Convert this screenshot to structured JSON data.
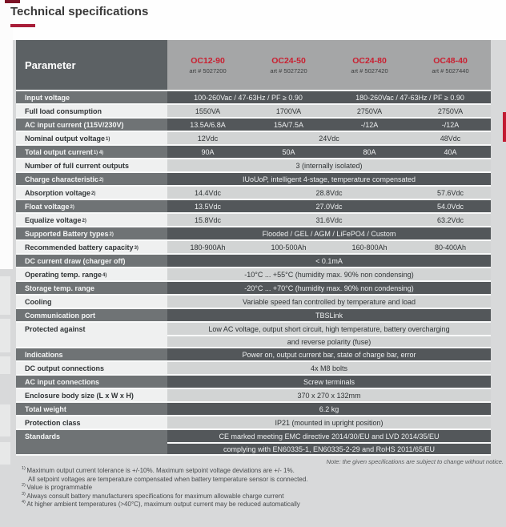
{
  "page": {
    "title": "Technical specifications",
    "note": "Note: the given specifications are subject to change without notice.",
    "footnotes": [
      {
        "marker": "1)",
        "lines": [
          "Maximum output current tolerance is +/-10%. Maximum setpoint voltage deviations are +/- 1%.",
          "All setpoint voltages are temperature compensated when battery temperature sensor is connected."
        ]
      },
      {
        "marker": "2)",
        "lines": [
          "Value is programmable"
        ]
      },
      {
        "marker": "3)",
        "lines": [
          "Always consult battery manufacturers specifications for maximum allowable charge current"
        ]
      },
      {
        "marker": "4)",
        "lines": [
          "At higher ambient temperatures (>40°C), maximum output current may be reduced automatically"
        ]
      }
    ]
  },
  "table": {
    "param_header": "Parameter",
    "products": [
      {
        "name": "OC12-90",
        "art": "art # 5027200"
      },
      {
        "name": "OC24-50",
        "art": "art # 5027220"
      },
      {
        "name": "OC24-80",
        "art": "art # 5027420"
      },
      {
        "name": "OC48-40",
        "art": "art # 5027440"
      }
    ],
    "rows": [
      {
        "label": "Input voltage",
        "shade": "dark",
        "layout": "span2",
        "values": [
          "100-260Vac / 47-63Hz / PF ≥ 0.90",
          "180-260Vac / 47-63Hz / PF ≥ 0.90"
        ]
      },
      {
        "label": "Full load consumption",
        "shade": "light",
        "layout": "cols4",
        "values": [
          "1550VA",
          "1700VA",
          "2750VA",
          "2750VA"
        ]
      },
      {
        "label": "AC input current (115V/230V)",
        "shade": "dark",
        "layout": "cols4",
        "values": [
          "13.5A/6.8A",
          "15A/7.5A",
          "-/12A",
          "-/12A"
        ]
      },
      {
        "label": "Nominal output voltage",
        "sup": "1)",
        "shade": "light",
        "layout": "mid3",
        "values": [
          "12Vdc",
          "24Vdc",
          "48Vdc"
        ]
      },
      {
        "label": "Total output current",
        "sup": "1) 4)",
        "shade": "dark",
        "layout": "cols4",
        "values": [
          "90A",
          "50A",
          "80A",
          "40A"
        ]
      },
      {
        "label": "Number of full current outputs",
        "shade": "light",
        "layout": "full",
        "values": [
          "3 (internally isolated)"
        ]
      },
      {
        "label": "Charge characteristic",
        "sup": "2)",
        "shade": "dark",
        "layout": "full",
        "values": [
          "IUoUoP, intelligent 4-stage, temperature compensated"
        ]
      },
      {
        "label": "Absorption voltage",
        "sup": "2)",
        "shade": "light",
        "layout": "mid3",
        "values": [
          "14.4Vdc",
          "28.8Vdc",
          "57.6Vdc"
        ]
      },
      {
        "label": "Float voltage",
        "sup": "2)",
        "shade": "dark",
        "layout": "mid3",
        "values": [
          "13.5Vdc",
          "27.0Vdc",
          "54.0Vdc"
        ]
      },
      {
        "label": "Equalize voltage",
        "sup": "2)",
        "shade": "light",
        "layout": "mid3",
        "values": [
          "15.8Vdc",
          "31.6Vdc",
          "63.2Vdc"
        ]
      },
      {
        "label": "Supported Battery types",
        "sup": "2)",
        "shade": "dark",
        "layout": "full",
        "values": [
          "Flooded / GEL / AGM / LiFePO4 / Custom"
        ]
      },
      {
        "label": "Recommended battery capacity",
        "sup": "3)",
        "shade": "light",
        "layout": "cols4",
        "values": [
          "180-900Ah",
          "100-500Ah",
          "160-800Ah",
          "80-400Ah"
        ]
      },
      {
        "label": "DC current draw (charger off)",
        "shade": "dark",
        "layout": "full",
        "values": [
          "< 0.1mA"
        ]
      },
      {
        "label": "Operating temp. range",
        "sup": "4)",
        "shade": "light",
        "layout": "full",
        "values": [
          "-10°C ... +55°C (humidity max. 90% non condensing)"
        ]
      },
      {
        "label": "Storage temp. range",
        "shade": "dark",
        "layout": "full",
        "values": [
          "-20°C ... +70°C (humidity max. 90% non condensing)"
        ]
      },
      {
        "label": "Cooling",
        "shade": "light",
        "layout": "full",
        "values": [
          "Variable speed fan controlled by temperature and load"
        ]
      },
      {
        "label": "Communication port",
        "shade": "dark",
        "layout": "full",
        "values": [
          "TBSLink"
        ]
      },
      {
        "label": "Protected against",
        "shade": "light",
        "layout": "full2",
        "values": [
          "Low AC voltage, output short circuit, high temperature, battery overcharging",
          "and reverse polarity (fuse)"
        ]
      },
      {
        "label": "Indications",
        "shade": "dark",
        "layout": "full",
        "values": [
          "Power on, output current bar, state of charge bar, error"
        ]
      },
      {
        "label": "DC output connections",
        "shade": "light",
        "layout": "full",
        "values": [
          "4x M8 bolts"
        ]
      },
      {
        "label": "AC input connections",
        "shade": "dark",
        "layout": "full",
        "values": [
          "Screw terminals"
        ]
      },
      {
        "label": "Enclosure body size (L x W x H)",
        "shade": "light",
        "layout": "full",
        "values": [
          "370 x 270 x 132mm"
        ]
      },
      {
        "label": "Total weight",
        "shade": "dark",
        "layout": "full",
        "values": [
          "6.2 kg"
        ]
      },
      {
        "label": "Protection class",
        "shade": "light",
        "layout": "full",
        "values": [
          "IP21 (mounted in upright position)"
        ]
      },
      {
        "label": "Standards",
        "shade": "dark",
        "layout": "full2",
        "values": [
          "CE marked meeting EMC directive 2014/30/EU and LVD 2014/35/EU",
          "complying with EN60335-1, EN60335-2-29 and RoHS 2011/65/EU"
        ]
      }
    ]
  },
  "colors": {
    "page_bg": "#d8d9da",
    "accent_red": "#c21a31",
    "title_underline_red": "#a81d38",
    "product_name_red": "#c92031",
    "header_param_bg": "#5c6164",
    "header_products_bg": "#a5a6a7",
    "dark_row_label_bg": "#6f7375",
    "dark_row_value_bg": "#53575a",
    "light_row_label_bg": "#eff0f0",
    "light_row_value_bg": "#d2d4d4"
  }
}
